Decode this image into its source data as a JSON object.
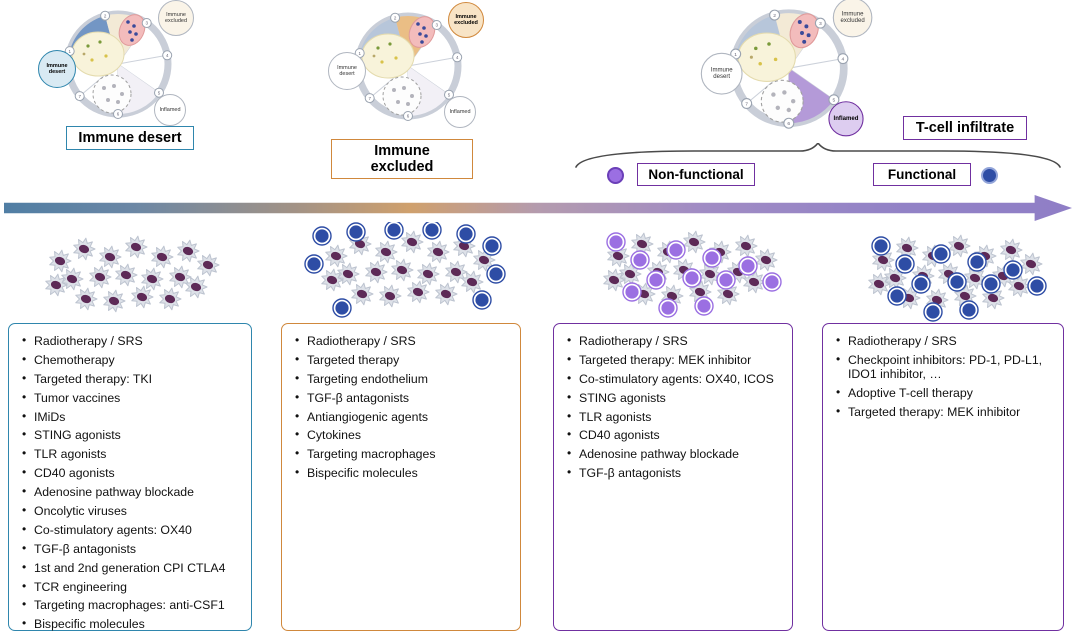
{
  "figure": {
    "phenotype_labels": {
      "immune_desert": "Immune desert",
      "immune_excluded": "Immune excluded",
      "tcell_infiltrate": "T-cell infiltrate",
      "non_functional": "Non-functional",
      "functional": "Functional"
    },
    "wheel_bubbles": {
      "immune_desert": "Immune desert",
      "immune_excluded": "Immune excluded",
      "inflamed": "Inflamed"
    }
  },
  "colors": {
    "desert_accent": "#2f86ad",
    "excluded_accent": "#d0883c",
    "infiltrate_accent": "#7030a0",
    "tcell_blue": "#2e4da5",
    "tcell_purple": "#9b6fe2",
    "tumor_nucleus": "#5d2a57"
  },
  "therapy_boxes": [
    {
      "accent": "#2f86ad",
      "items": [
        "Radiotherapy / SRS",
        "Chemotherapy",
        "Targeted therapy: TKI",
        "Tumor vaccines",
        "IMiDs",
        "STING agonists",
        "TLR agonists",
        "CD40 agonists",
        "Adenosine pathway blockade",
        "Oncolytic viruses",
        "Co-stimulatory agents: OX40",
        "TGF-β antagonists",
        "1st and 2nd generation CPI CTLA4",
        "TCR engineering",
        "Targeting macrophages: anti-CSF1",
        "Bispecific molecules"
      ]
    },
    {
      "accent": "#d0883c",
      "items": [
        "Radiotherapy / SRS",
        "Targeted therapy",
        "Targeting endothelium",
        "TGF-β antagonists",
        "Antiangiogenic agents",
        "Cytokines",
        "Targeting macrophages",
        "Bispecific molecules"
      ]
    },
    {
      "accent": "#7030a0",
      "items": [
        "Radiotherapy / SRS",
        "Targeted therapy: MEK inhibitor",
        "Co-stimulatory agents: OX40, ICOS",
        "STING agonists",
        "TLR agonists",
        "CD40 agonists",
        "Adenosine pathway blockade",
        "TGF-β antagonists"
      ]
    },
    {
      "accent": "#7030a0",
      "items": [
        "Radiotherapy / SRS",
        "Checkpoint inhibitors: PD-1, PD-L1, IDO1 inhibitor, …",
        "Adoptive T-cell therapy",
        "Targeted therapy: MEK inhibitor"
      ]
    }
  ],
  "clusters": [
    {
      "pattern": "none",
      "color": null
    },
    {
      "pattern": "periphery",
      "color": "#2e4da5"
    },
    {
      "pattern": "mixed",
      "color": "#9b6fe2"
    },
    {
      "pattern": "mixed",
      "color": "#2e4da5"
    }
  ]
}
